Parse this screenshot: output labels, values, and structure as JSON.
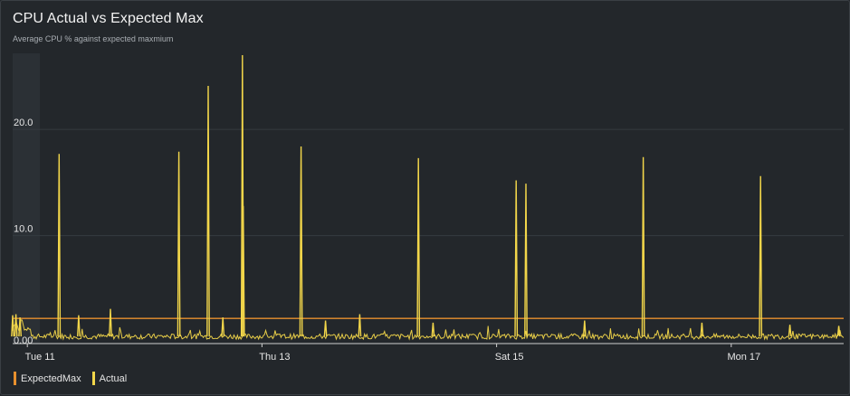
{
  "chart_data": {
    "type": "line",
    "title": "CPU Actual vs Expected Max",
    "subtitle": "Average CPU % against expected maxmium",
    "xlabel": "",
    "ylabel": "",
    "x_range": [
      "2024-06-10T21:00",
      "2024-06-17T23:00"
    ],
    "ylim": [
      0,
      27
    ],
    "yticks": [
      "0.00",
      "10.0",
      "20.0"
    ],
    "ytick_values": [
      0,
      10,
      20
    ],
    "xticks": [
      "Tue 11",
      "Thu 13",
      "Sat 15",
      "Mon 17"
    ],
    "grid": true,
    "legend_position": "bottom-left",
    "series": [
      {
        "name": "ExpectedMax",
        "color": "#e8902e",
        "kind": "constant",
        "value": 2.2
      },
      {
        "name": "Actual",
        "color": "#f2d64a",
        "kind": "line",
        "baseline": 0.5,
        "points": [
          {
            "x": "2024-06-10T21:00",
            "y": 2.5
          },
          {
            "x": "2024-06-10T21:40",
            "y": 2.6
          },
          {
            "x": "2024-06-10T22:30",
            "y": 2.3
          },
          {
            "x": "2024-06-11T06:30",
            "y": 17.7
          },
          {
            "x": "2024-06-11T10:30",
            "y": 2.5
          },
          {
            "x": "2024-06-11T17:00",
            "y": 3.1
          },
          {
            "x": "2024-06-12T07:00",
            "y": 17.9
          },
          {
            "x": "2024-06-12T13:00",
            "y": 24.1
          },
          {
            "x": "2024-06-12T16:00",
            "y": 2.3
          },
          {
            "x": "2024-06-12T20:00",
            "y": 27.0
          },
          {
            "x": "2024-06-12T20:10",
            "y": 12.8
          },
          {
            "x": "2024-06-13T08:00",
            "y": 18.4
          },
          {
            "x": "2024-06-13T13:00",
            "y": 2.0
          },
          {
            "x": "2024-06-13T20:00",
            "y": 2.6
          },
          {
            "x": "2024-06-14T08:00",
            "y": 17.3
          },
          {
            "x": "2024-06-14T11:00",
            "y": 1.8
          },
          {
            "x": "2024-06-15T04:00",
            "y": 15.2
          },
          {
            "x": "2024-06-15T06:00",
            "y": 14.9
          },
          {
            "x": "2024-06-15T18:00",
            "y": 2.0
          },
          {
            "x": "2024-06-16T06:00",
            "y": 17.4
          },
          {
            "x": "2024-06-16T18:00",
            "y": 1.8
          },
          {
            "x": "2024-06-17T06:00",
            "y": 15.6
          },
          {
            "x": "2024-06-17T12:00",
            "y": 1.6
          },
          {
            "x": "2024-06-17T22:00",
            "y": 1.5
          }
        ]
      }
    ]
  }
}
